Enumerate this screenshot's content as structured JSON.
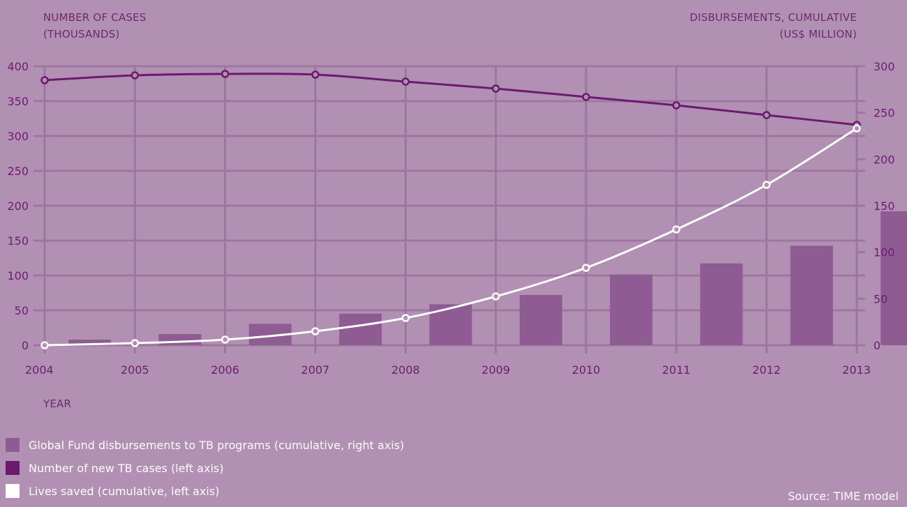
{
  "chart_data": {
    "type": "bar+line",
    "left_axis_title": [
      "NUMBER OF CASES",
      "(THOUSANDS)"
    ],
    "right_axis_title": [
      "DISBURSEMENTS, CUMULATIVE",
      "(US$ MILLION)"
    ],
    "xlabel": "YEAR",
    "categories": [
      "2004",
      "2005",
      "2006",
      "2007",
      "2008",
      "2009",
      "2010",
      "2011",
      "2012",
      "2013"
    ],
    "left_ylim": [
      0,
      400
    ],
    "left_ticks": [
      0,
      50,
      100,
      150,
      200,
      250,
      300,
      350,
      400
    ],
    "right_ylim": [
      0,
      300
    ],
    "right_ticks": [
      0,
      50,
      100,
      150,
      200,
      250,
      300
    ],
    "grid": true,
    "series": [
      {
        "name": "Global Fund disbursements to TB programs (cumulative, right axis)",
        "type": "bar",
        "axis": "right",
        "values": [
          6,
          12,
          23,
          34,
          44,
          54,
          76,
          88,
          107,
          144
        ]
      },
      {
        "name": "Number of new TB cases (left axis)",
        "type": "line",
        "axis": "left",
        "values": [
          380,
          387,
          389,
          388,
          378,
          368,
          356,
          344,
          330,
          316
        ]
      },
      {
        "name": "Lives saved (cumulative, left axis)",
        "type": "line",
        "axis": "left",
        "values": [
          0,
          3,
          8,
          20,
          39,
          70,
          111,
          166,
          230,
          311
        ]
      }
    ],
    "legend_placement": "bottom-left",
    "colors": {
      "background": "#b290b4",
      "bars": "#8e5c92",
      "cases_line": "#6b1a6e",
      "lives_line": "#ffffff",
      "grid": "#9d76a0",
      "text": "#6b1d6e"
    },
    "source": "Source: TIME model"
  }
}
